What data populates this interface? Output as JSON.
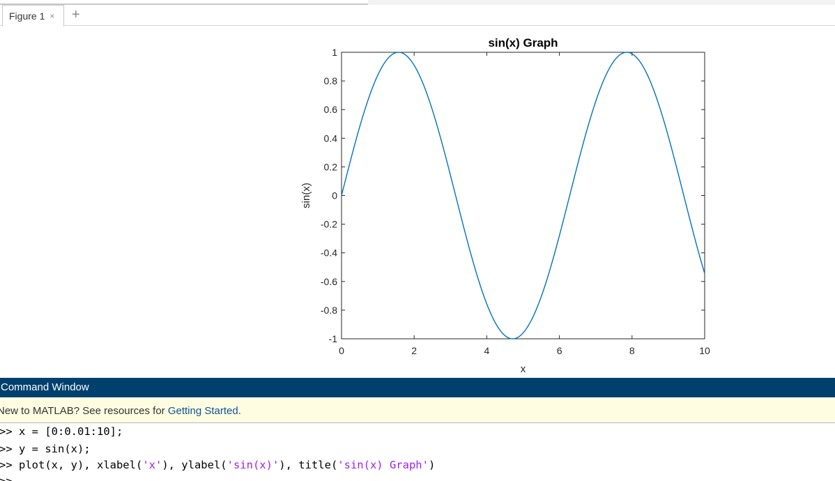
{
  "tabs": {
    "figure_tab_label": "Figure 1",
    "close_glyph": "×",
    "add_glyph": "+"
  },
  "chart_data": {
    "type": "line",
    "title": "sin(x) Graph",
    "xlabel": "x",
    "ylabel": "sin(x)",
    "xlim": [
      0,
      10
    ],
    "ylim": [
      -1,
      1
    ],
    "x_ticks": [
      "0",
      "2",
      "4",
      "6",
      "8",
      "10"
    ],
    "y_ticks": [
      "1",
      "0.8",
      "0.6",
      "0.4",
      "0.2",
      "0",
      "-0.2",
      "-0.4",
      "-0.6",
      "-0.8",
      "-1"
    ],
    "series": [
      {
        "function": "sin(x)",
        "x_start": 0,
        "x_step": 0.01,
        "x_end": 10,
        "color": "#0072bd"
      }
    ],
    "grid": false,
    "box": true
  },
  "command_window": {
    "header": "Command Window",
    "banner_text": "New to MATLAB? See resources for ",
    "banner_link": "Getting Started",
    "banner_end": ".",
    "lines": [
      {
        "prompt": ">> ",
        "code": "x = [0:0.01:10];"
      },
      {
        "prompt": ">> ",
        "code": "y = sin(x);"
      },
      {
        "prompt": ">> ",
        "code_pre": "plot(x, y), xlabel(",
        "s1": "'x'",
        "mid1": "), ylabel(",
        "s2": "'sin(x)'",
        "mid2": "), title(",
        "s3": "'sin(x) Graph'",
        "end": ")"
      },
      {
        "prompt": ">> "
      }
    ]
  }
}
